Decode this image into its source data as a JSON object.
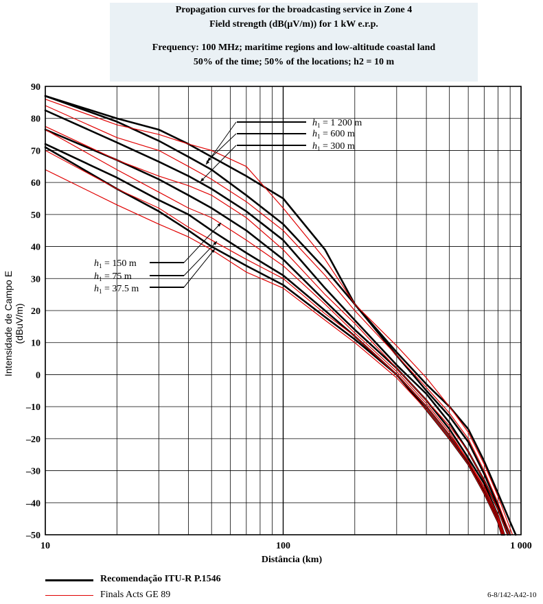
{
  "title_lines": [
    "Propagation curves for the broadcasting service in Zone 4",
    "Field strength (dB(μV/m)) for 1 kW e.r.p.",
    "Frequency: 100 MHz; maritime regions and low-altitude coastal land",
    "50% of the time; 50% of the locations; h2 = 10 m"
  ],
  "figure_code": "6-8/142-A42-10",
  "chart_data": {
    "type": "line",
    "xlabel": "Distância (km)",
    "ylabel": "Intensidade de Campo E (dBuV/m)",
    "xscale": "log",
    "xlim": [
      10,
      1000
    ],
    "ylim": [
      -50,
      90
    ],
    "grid": true,
    "x_ticks": [
      10,
      100,
      1000
    ],
    "x_tick_labels": [
      "10",
      "100",
      "1 000"
    ],
    "y_ticks": [
      90,
      80,
      70,
      60,
      50,
      40,
      30,
      20,
      10,
      0,
      -10,
      -20,
      -30,
      -40,
      -50
    ],
    "y_tick_labels": [
      "90",
      "80",
      "70",
      "60",
      "50",
      "40",
      "30",
      "20",
      "10",
      "0",
      "–10",
      "–20",
      "–30",
      "–40",
      "–50"
    ],
    "legend": {
      "position": "bottom-left",
      "items": [
        {
          "label": "Recomendação ITU-R P.1546",
          "color": "#000000"
        },
        {
          "label": "Finals Acts GE 89",
          "color": "#e00000"
        }
      ]
    },
    "annotations": [
      "h1 = 1 200 m",
      "h1 =    600 m",
      "h1 =    300 m",
      "h1 = 150   m",
      "h1 =   75   m",
      "h1 =   37.5 m"
    ],
    "series": [
      {
        "group": "Recomendação ITU-R P.1546",
        "h1": "1 200 m",
        "color": "#000000",
        "points": [
          [
            10,
            87
          ],
          [
            20,
            80
          ],
          [
            30,
            76.5
          ],
          [
            40,
            72
          ],
          [
            50,
            68
          ],
          [
            70,
            62
          ],
          [
            100,
            55
          ],
          [
            150,
            39
          ],
          [
            200,
            22
          ],
          [
            300,
            7
          ],
          [
            400,
            -3
          ],
          [
            500,
            -10
          ],
          [
            600,
            -17
          ],
          [
            700,
            -27
          ],
          [
            800,
            -37
          ],
          [
            900,
            -46
          ],
          [
            950,
            -50
          ]
        ]
      },
      {
        "group": "Recomendação ITU-R P.1546",
        "h1": "600 m",
        "color": "#000000",
        "points": [
          [
            10,
            87
          ],
          [
            20,
            79
          ],
          [
            30,
            73
          ],
          [
            40,
            68
          ],
          [
            50,
            64
          ],
          [
            70,
            56
          ],
          [
            100,
            47
          ],
          [
            150,
            33
          ],
          [
            200,
            22
          ],
          [
            300,
            6
          ],
          [
            400,
            -5
          ],
          [
            500,
            -13
          ],
          [
            600,
            -21
          ],
          [
            700,
            -31
          ],
          [
            800,
            -41
          ],
          [
            900,
            -50
          ]
        ]
      },
      {
        "group": "Recomendação ITU-R P.1546",
        "h1": "300 m",
        "color": "#000000",
        "points": [
          [
            10,
            82.5
          ],
          [
            20,
            72.5
          ],
          [
            30,
            66.5
          ],
          [
            40,
            62
          ],
          [
            50,
            58
          ],
          [
            70,
            51
          ],
          [
            100,
            42
          ],
          [
            150,
            27
          ],
          [
            200,
            17
          ],
          [
            300,
            3
          ],
          [
            400,
            -6
          ],
          [
            500,
            -15
          ],
          [
            600,
            -24
          ],
          [
            700,
            -33
          ],
          [
            800,
            -42
          ],
          [
            880,
            -50
          ]
        ]
      },
      {
        "group": "Recomendação ITU-R P.1546",
        "h1": "150 m",
        "color": "#000000",
        "points": [
          [
            10,
            76.5
          ],
          [
            20,
            67
          ],
          [
            30,
            61
          ],
          [
            40,
            56
          ],
          [
            50,
            52
          ],
          [
            70,
            45
          ],
          [
            100,
            36
          ],
          [
            150,
            23
          ],
          [
            200,
            14
          ],
          [
            300,
            2
          ],
          [
            400,
            -8
          ],
          [
            500,
            -17
          ],
          [
            600,
            -26
          ],
          [
            700,
            -34
          ],
          [
            800,
            -44
          ],
          [
            850,
            -50
          ]
        ]
      },
      {
        "group": "Recomendação ITU-R P.1546",
        "h1": "75 m",
        "color": "#000000",
        "points": [
          [
            10,
            72
          ],
          [
            20,
            61.5
          ],
          [
            30,
            54.5
          ],
          [
            40,
            50
          ],
          [
            50,
            45
          ],
          [
            70,
            38
          ],
          [
            100,
            31
          ],
          [
            150,
            20
          ],
          [
            200,
            12
          ],
          [
            300,
            0
          ],
          [
            400,
            -10
          ],
          [
            500,
            -19
          ],
          [
            600,
            -27
          ],
          [
            700,
            -36
          ],
          [
            800,
            -45
          ],
          [
            840,
            -50
          ]
        ]
      },
      {
        "group": "Recomendação ITU-R P.1546",
        "h1": "37.5 m",
        "color": "#000000",
        "points": [
          [
            10,
            71
          ],
          [
            20,
            58
          ],
          [
            30,
            51
          ],
          [
            40,
            45
          ],
          [
            50,
            40
          ],
          [
            70,
            34
          ],
          [
            100,
            28
          ],
          [
            150,
            18
          ],
          [
            200,
            11
          ],
          [
            300,
            0
          ],
          [
            400,
            -11
          ],
          [
            500,
            -20
          ],
          [
            600,
            -28
          ],
          [
            700,
            -37
          ],
          [
            800,
            -46
          ],
          [
            830,
            -50
          ]
        ]
      },
      {
        "group": "Finals Acts GE 89",
        "h1": "1 200 m",
        "color": "#e00000",
        "points": [
          [
            10,
            86
          ],
          [
            20,
            78
          ],
          [
            30,
            75
          ],
          [
            40,
            72
          ],
          [
            50,
            70
          ],
          [
            70,
            65
          ],
          [
            100,
            52
          ],
          [
            150,
            36
          ],
          [
            200,
            22
          ],
          [
            300,
            9
          ],
          [
            400,
            -1
          ],
          [
            500,
            -10
          ],
          [
            600,
            -18
          ],
          [
            700,
            -28
          ],
          [
            800,
            -38
          ],
          [
            900,
            -48
          ],
          [
            920,
            -50
          ]
        ]
      },
      {
        "group": "Finals Acts GE 89",
        "h1": "600 m",
        "color": "#e00000",
        "points": [
          [
            10,
            84
          ],
          [
            20,
            74
          ],
          [
            30,
            70
          ],
          [
            40,
            65
          ],
          [
            50,
            61
          ],
          [
            70,
            54
          ],
          [
            100,
            45
          ],
          [
            150,
            31
          ],
          [
            200,
            20
          ],
          [
            300,
            6
          ],
          [
            400,
            -4
          ],
          [
            500,
            -12
          ],
          [
            600,
            -20
          ],
          [
            700,
            -30
          ],
          [
            800,
            -40
          ],
          [
            900,
            -50
          ]
        ]
      },
      {
        "group": "Finals Acts GE 89",
        "h1": "300 m",
        "color": "#e00000",
        "points": [
          [
            10,
            77.5
          ],
          [
            20,
            67
          ],
          [
            30,
            62
          ],
          [
            40,
            59
          ],
          [
            50,
            56
          ],
          [
            70,
            49
          ],
          [
            100,
            39
          ],
          [
            150,
            25
          ],
          [
            200,
            16
          ],
          [
            300,
            2
          ],
          [
            400,
            -8
          ],
          [
            500,
            -16
          ],
          [
            600,
            -24
          ],
          [
            700,
            -33
          ],
          [
            800,
            -42
          ],
          [
            880,
            -50
          ]
        ]
      },
      {
        "group": "Finals Acts GE 89",
        "h1": "150 m",
        "color": "#e00000",
        "points": [
          [
            10,
            76.5
          ],
          [
            20,
            64
          ],
          [
            30,
            57
          ],
          [
            40,
            52
          ],
          [
            50,
            49
          ],
          [
            70,
            42
          ],
          [
            100,
            34
          ],
          [
            150,
            22
          ],
          [
            200,
            13
          ],
          [
            300,
            1
          ],
          [
            400,
            -9
          ],
          [
            500,
            -18
          ],
          [
            600,
            -27
          ],
          [
            700,
            -35
          ],
          [
            800,
            -44
          ],
          [
            850,
            -50
          ]
        ]
      },
      {
        "group": "Finals Acts GE 89",
        "h1": "75 m",
        "color": "#e00000",
        "points": [
          [
            10,
            70
          ],
          [
            20,
            58
          ],
          [
            30,
            52
          ],
          [
            40,
            46
          ],
          [
            50,
            42
          ],
          [
            70,
            36
          ],
          [
            100,
            30
          ],
          [
            150,
            19
          ],
          [
            200,
            12
          ],
          [
            300,
            0
          ],
          [
            400,
            -10
          ],
          [
            500,
            -19
          ],
          [
            600,
            -27
          ],
          [
            700,
            -36
          ],
          [
            800,
            -45
          ],
          [
            840,
            -50
          ]
        ]
      },
      {
        "group": "Finals Acts GE 89",
        "h1": "37.5 m",
        "color": "#e00000",
        "points": [
          [
            10,
            64
          ],
          [
            20,
            53
          ],
          [
            30,
            47
          ],
          [
            40,
            43
          ],
          [
            50,
            39
          ],
          [
            70,
            32
          ],
          [
            100,
            27
          ],
          [
            150,
            17
          ],
          [
            200,
            10
          ],
          [
            300,
            -1
          ],
          [
            400,
            -11
          ],
          [
            500,
            -20
          ],
          [
            600,
            -28
          ],
          [
            700,
            -37
          ],
          [
            800,
            -46
          ],
          [
            830,
            -50
          ]
        ]
      }
    ]
  }
}
